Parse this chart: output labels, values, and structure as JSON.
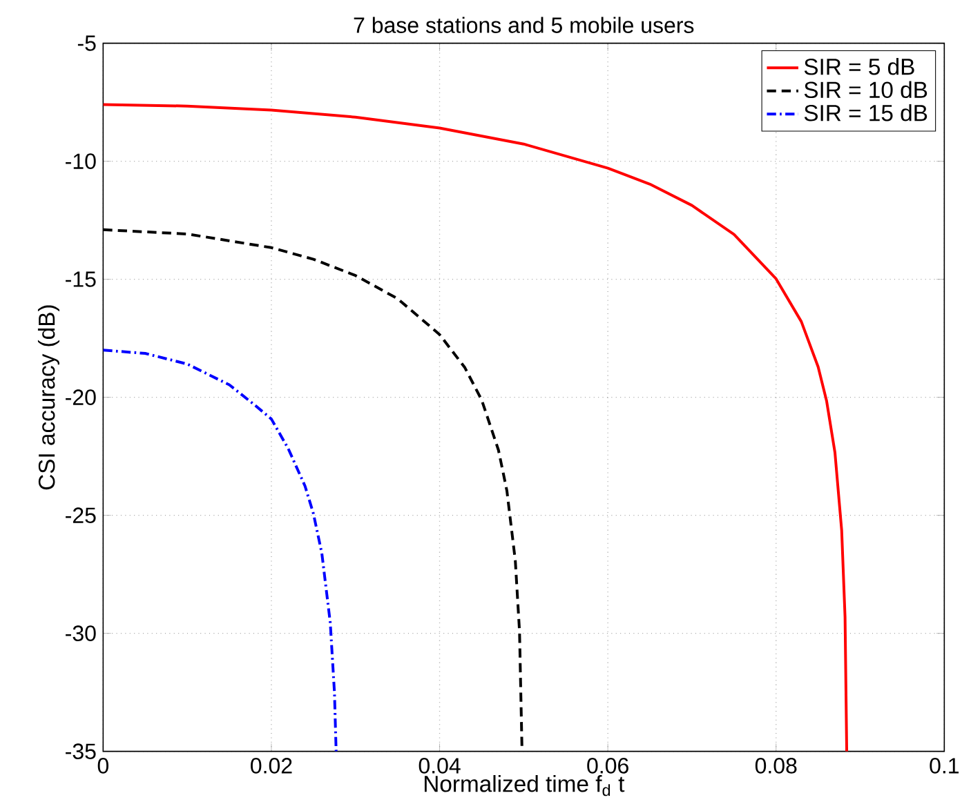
{
  "chart_data": {
    "type": "line",
    "title": "7 base stations and 5 mobile users",
    "xlabel": "Normalized time f$_{d}$ t",
    "ylabel": "CSI accuracy (dB)",
    "xlim": [
      0,
      0.1
    ],
    "ylim": [
      -35,
      -5
    ],
    "xticks": [
      0,
      0.02,
      0.04,
      0.06,
      0.08,
      0.1
    ],
    "yticks": [
      -35,
      -30,
      -25,
      -20,
      -15,
      -10,
      -5
    ],
    "grid": true,
    "legend": "top right",
    "marker": "none",
    "series": [
      {
        "name": "SIR = 5 dB",
        "color": "#ff0000",
        "line_style": "solid",
        "x": [
          0,
          0.01,
          0.02,
          0.03,
          0.04,
          0.05,
          0.06,
          0.065,
          0.07,
          0.075,
          0.08,
          0.083,
          0.085,
          0.086,
          0.087,
          0.0878,
          0.0882,
          0.0884
        ],
        "values": [
          -7.6,
          -7.66,
          -7.83,
          -8.13,
          -8.59,
          -9.27,
          -10.29,
          -10.97,
          -11.87,
          -13.1,
          -14.98,
          -16.79,
          -18.71,
          -20.14,
          -22.34,
          -25.64,
          -29.3,
          -35
        ]
      },
      {
        "name": "SIR = 10 dB",
        "color": "#000000",
        "line_style": "dashed",
        "x": [
          0,
          0.01,
          0.02,
          0.025,
          0.03,
          0.035,
          0.04,
          0.043,
          0.045,
          0.047,
          0.048,
          0.049,
          0.0495,
          0.0498
        ],
        "values": [
          -12.9,
          -13.08,
          -13.66,
          -14.15,
          -14.84,
          -15.82,
          -17.34,
          -18.74,
          -20.11,
          -22.24,
          -23.96,
          -26.92,
          -29.91,
          -35
        ]
      },
      {
        "name": "SIR = 15 dB",
        "color": "#0000ff",
        "line_style": "dashdot",
        "x": [
          0,
          0.005,
          0.01,
          0.015,
          0.018,
          0.02,
          0.022,
          0.024,
          0.025,
          0.026,
          0.027,
          0.0275,
          0.0277
        ],
        "values": [
          -18,
          -18.14,
          -18.59,
          -19.47,
          -20.32,
          -20.92,
          -22.17,
          -23.76,
          -24.93,
          -26.61,
          -29.54,
          -32.51,
          -35
        ]
      }
    ]
  }
}
